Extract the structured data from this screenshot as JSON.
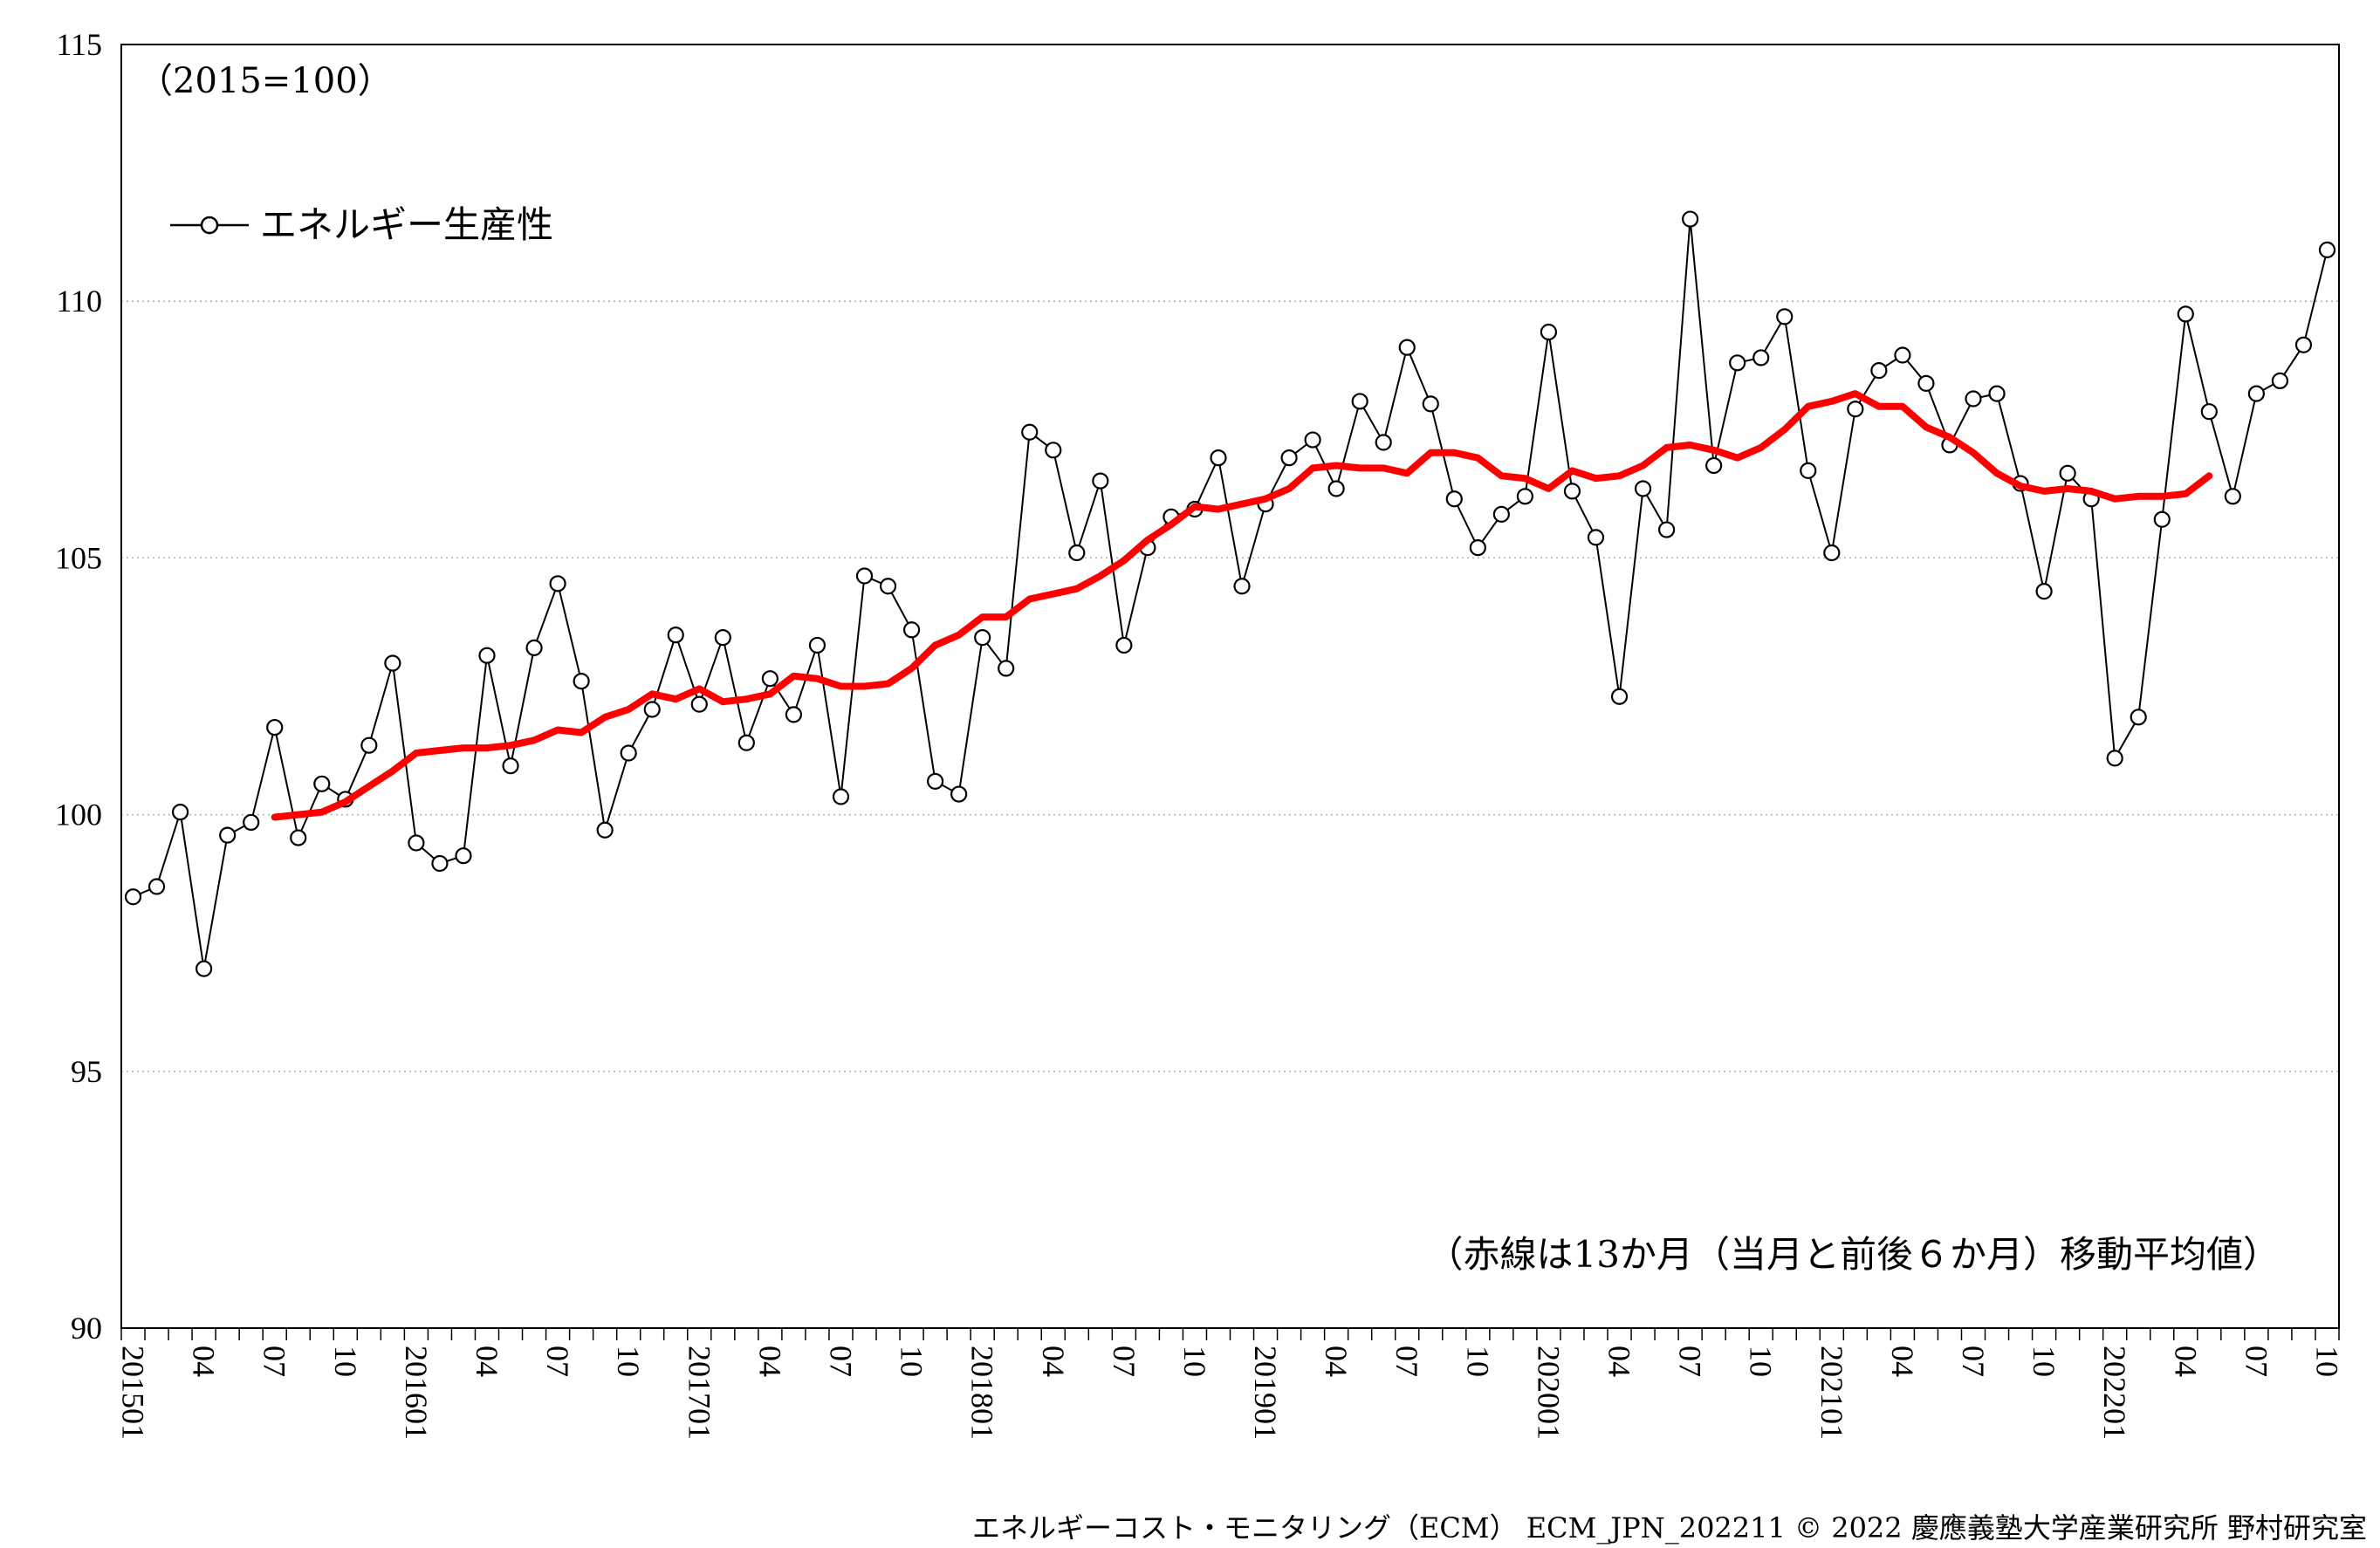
{
  "chart_data": {
    "type": "line",
    "unit_note": "（2015=100）",
    "legend_label": "エネルギー生産性",
    "moving_average_note": "（赤線は13か月（当月と前後６か月）移動平均値）",
    "ylim": [
      90,
      115
    ],
    "y_ticks": [
      "90",
      "95",
      "100",
      "105",
      "110",
      "115"
    ],
    "x_tick_labels": [
      "201501",
      "04",
      "07",
      "10",
      "201601",
      "04",
      "07",
      "10",
      "201701",
      "04",
      "07",
      "10",
      "201801",
      "04",
      "07",
      "10",
      "201901",
      "04",
      "07",
      "10",
      "202001",
      "04",
      "07",
      "10",
      "202101",
      "04",
      "07",
      "10",
      "202201",
      "04",
      "07",
      "10"
    ],
    "grid": "horizontal dotted",
    "legend_position": "top-left",
    "series": [
      {
        "name": "エネルギー生産性",
        "color": "#000000",
        "values": [
          98.4,
          98.6,
          100.05,
          97.0,
          99.6,
          99.85,
          101.7,
          99.55,
          100.6,
          100.3,
          101.35,
          102.95,
          99.45,
          99.05,
          99.2,
          103.1,
          100.95,
          103.25,
          104.5,
          102.6,
          99.7,
          101.2,
          102.05,
          103.5,
          102.15,
          103.45,
          101.4,
          102.65,
          101.95,
          103.3,
          100.35,
          104.65,
          104.45,
          103.6,
          100.65,
          100.4,
          103.45,
          102.85,
          107.45,
          107.1,
          105.1,
          106.5,
          103.3,
          105.2,
          105.8,
          105.95,
          106.95,
          104.45,
          106.05,
          106.95,
          107.3,
          106.35,
          108.05,
          107.25,
          109.1,
          108.0,
          106.15,
          105.2,
          105.85,
          106.2,
          109.4,
          106.3,
          105.4,
          102.3,
          106.35,
          105.55,
          111.6,
          106.8,
          108.8,
          108.9,
          109.7,
          106.7,
          105.1,
          107.9,
          108.65,
          108.95,
          108.4,
          107.2,
          108.1,
          108.2,
          106.45,
          104.35,
          106.65,
          106.15,
          101.1,
          101.9,
          105.75,
          109.75,
          107.85,
          106.2,
          108.2,
          108.45,
          109.15,
          111.0
        ]
      },
      {
        "name": "13か月移動平均",
        "color": "#ff0000",
        "start_index": 6,
        "values": [
          99.95,
          100.0,
          100.05,
          100.25,
          100.55,
          100.85,
          101.2,
          101.25,
          101.3,
          101.3,
          101.35,
          101.45,
          101.65,
          101.6,
          101.9,
          102.05,
          102.35,
          102.25,
          102.45,
          102.2,
          102.25,
          102.35,
          102.7,
          102.65,
          102.5,
          102.5,
          102.55,
          102.85,
          103.3,
          103.5,
          103.85,
          103.85,
          104.2,
          104.3,
          104.4,
          104.65,
          104.95,
          105.35,
          105.65,
          106.0,
          105.95,
          106.05,
          106.15,
          106.35,
          106.75,
          106.8,
          106.75,
          106.75,
          106.65,
          107.05,
          107.05,
          106.95,
          106.6,
          106.55,
          106.35,
          106.7,
          106.55,
          106.6,
          106.8,
          107.15,
          107.2,
          107.1,
          106.95,
          107.15,
          107.5,
          107.95,
          108.05,
          108.2,
          107.95,
          107.95,
          107.55,
          107.35,
          107.05,
          106.65,
          106.4,
          106.3,
          106.35,
          106.3,
          106.15,
          106.2,
          106.2,
          106.25,
          106.6
        ]
      }
    ],
    "footer_text": "エネルギーコスト・モニタリング（ECM） ECM_JPN_202211 © 2022 慶應義塾大学産業研究所 野村研究室"
  }
}
